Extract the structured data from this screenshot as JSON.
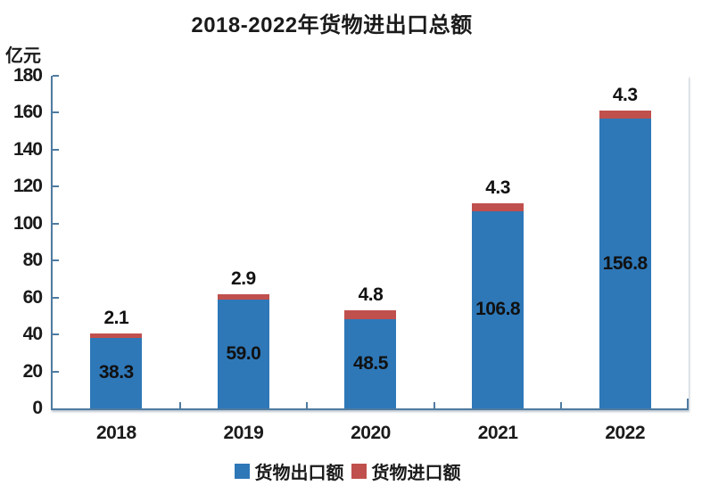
{
  "title": "2018-2022年货物进出口总额",
  "unit_label": "亿元",
  "colors": {
    "export_blue": "#2e78b8",
    "import_red": "#c0504d",
    "axis": "#4f7ba0",
    "text": "#1a1a1a",
    "background": "#ffffff"
  },
  "chart_data": {
    "type": "bar",
    "stacked": true,
    "title": "2018-2022年货物进出口总额",
    "ylabel": "亿元",
    "categories": [
      "2018",
      "2019",
      "2020",
      "2021",
      "2022"
    ],
    "series": [
      {
        "name": "货物出口额",
        "color": "#2e78b8",
        "values": [
          38.3,
          59.0,
          48.5,
          106.8,
          156.8
        ]
      },
      {
        "name": "货物进口额",
        "color": "#c0504d",
        "values": [
          2.1,
          2.9,
          4.8,
          4.3,
          4.3
        ]
      }
    ],
    "bar_value_labels": {
      "inside_blue": [
        "38.3",
        "59.0",
        "48.5",
        "106.8",
        "156.8"
      ],
      "above_bar": [
        "2.1",
        "2.9",
        "4.8",
        "4.3",
        "4.3"
      ]
    },
    "ylim": [
      0,
      180
    ],
    "ytick_step": 20,
    "yticks": [
      0,
      20,
      40,
      60,
      80,
      100,
      120,
      140,
      160,
      180
    ],
    "grid": false,
    "legend_position": "bottom"
  }
}
